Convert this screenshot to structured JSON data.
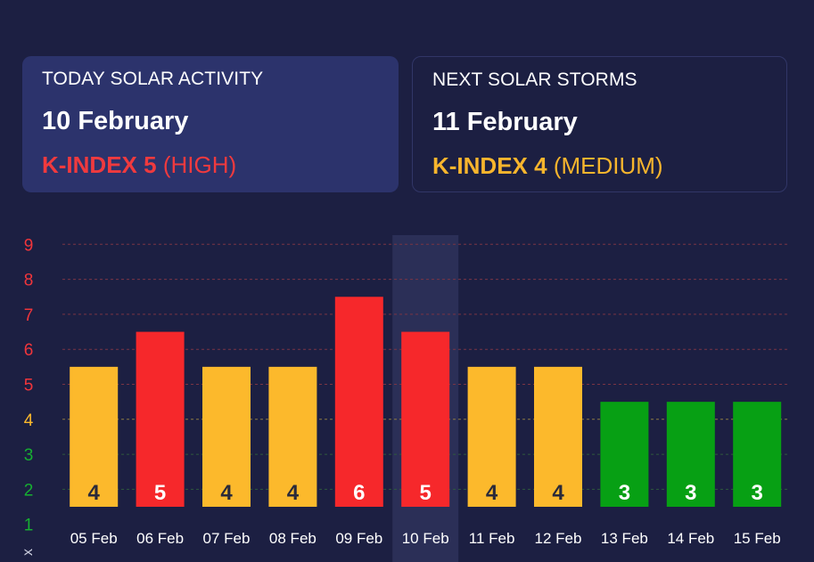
{
  "cards": {
    "today": {
      "label": "TODAY SOLAR ACTIVITY",
      "date": "10 February",
      "kindex": "K-INDEX 5",
      "level": "(HIGH)"
    },
    "next": {
      "label": "NEXT SOLAR STORMS",
      "date": "11 February",
      "kindex": "K-INDEX 4",
      "level": "(MEDIUM)"
    }
  },
  "colors": {
    "background": "#1c1f42",
    "high": "#f6282b",
    "medium": "#fcb92c",
    "low": "#07a014",
    "highlight": "#2b2f57"
  },
  "chart_data": {
    "type": "bar",
    "categories": [
      "05 Feb",
      "06 Feb",
      "07 Feb",
      "08 Feb",
      "09 Feb",
      "10 Feb",
      "11 Feb",
      "12 Feb",
      "13 Feb",
      "14 Feb",
      "15 Feb"
    ],
    "values": [
      4,
      5,
      4,
      4,
      6,
      5,
      4,
      4,
      3,
      3,
      3
    ],
    "levels": [
      "medium",
      "high",
      "medium",
      "medium",
      "high",
      "high",
      "medium",
      "medium",
      "low",
      "low",
      "low"
    ],
    "highlighted_category": "10 Feb",
    "y_ticks": [
      1,
      2,
      3,
      4,
      5,
      6,
      7,
      8,
      9
    ],
    "ylim": [
      0,
      9
    ],
    "y_axis_label": "x",
    "grid": true
  }
}
